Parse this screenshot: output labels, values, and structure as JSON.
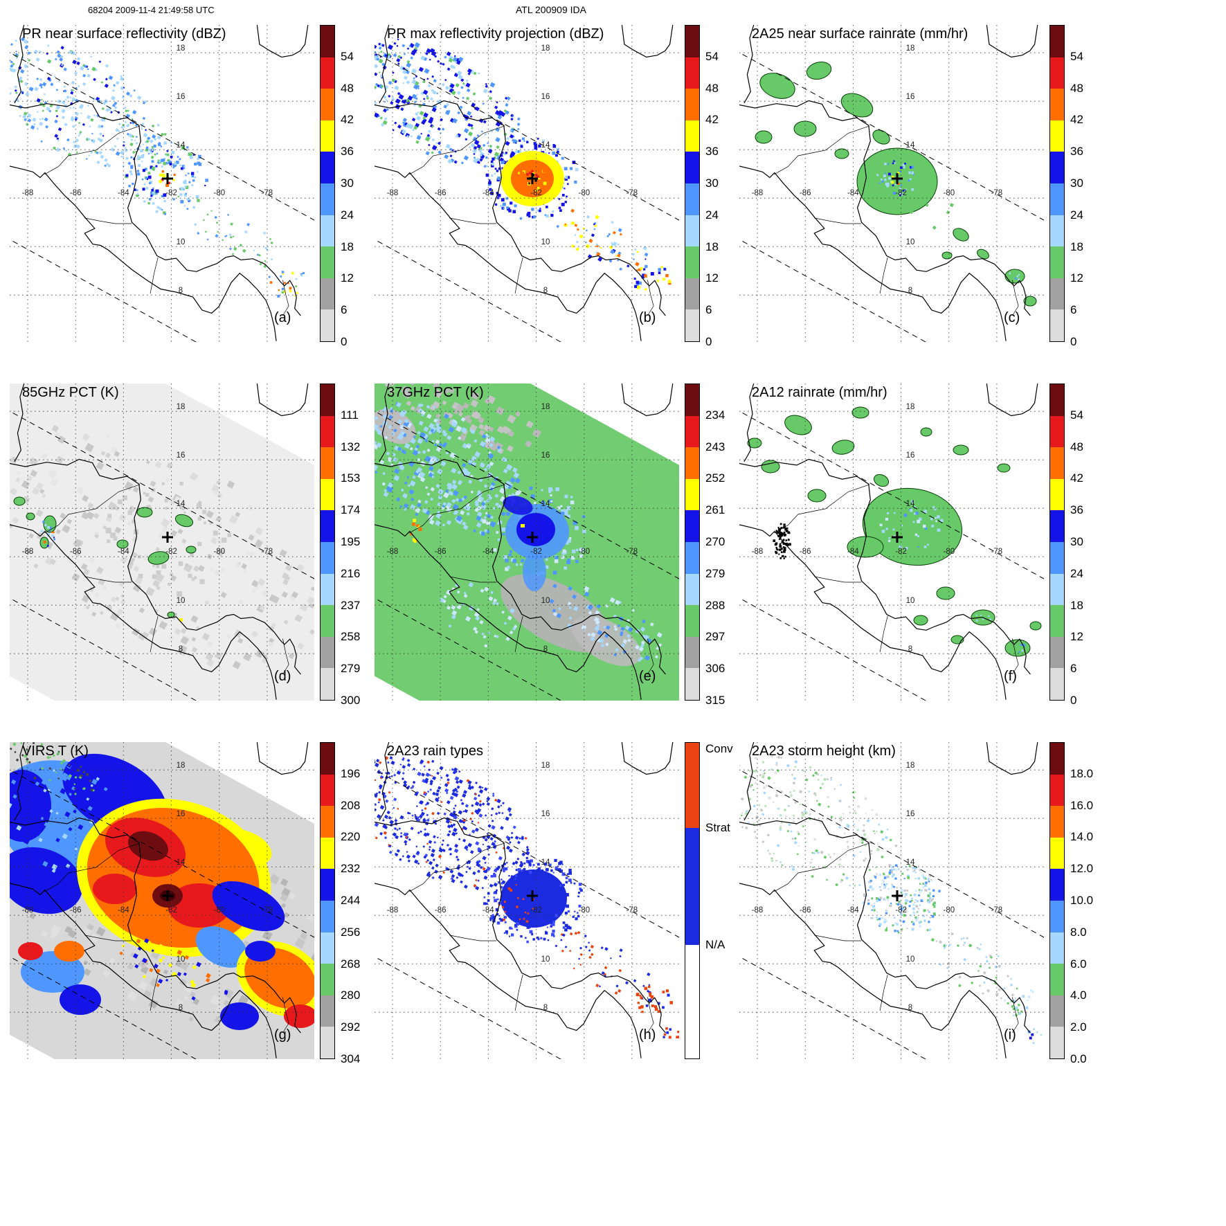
{
  "header": {
    "left": "68204 2009-11-4 21:49:58 UTC",
    "center": "ATL 200909 IDA"
  },
  "map": {
    "lon_labels": [
      "-88",
      "-86",
      "-84",
      "-82",
      "-80",
      "-78"
    ],
    "lat_labels": [
      "18",
      "16",
      "14",
      "10",
      "8"
    ],
    "storm_center_marker": "+",
    "storm_center": {
      "lon": -82.2,
      "lat": 12.8
    }
  },
  "palette": {
    "maroon": "#6d0d12",
    "red": "#e8191c",
    "orange": "#ff6e00",
    "yellow": "#ffff00",
    "blue": "#1414e8",
    "medblue": "#4f97ff",
    "lightblue": "#a6d7ff",
    "green": "#68c968",
    "gray": "#a2a2a2",
    "lightgray": "#dcdcdc",
    "conv": "#e84311",
    "strat": "#1c2be0",
    "swath85_bg": "#ededed",
    "swath37_bg": "#72cc72",
    "virs_bg": "#d8d8d8"
  },
  "colorbars": {
    "rainbow": [
      "#6d0d12",
      "#e8191c",
      "#ff6e00",
      "#ffff00",
      "#1414e8",
      "#4f97ff",
      "#a6d7ff",
      "#68c968",
      "#a2a2a2",
      "#dcdcdc"
    ],
    "dbz": {
      "ticks": [
        "54",
        "48",
        "42",
        "36",
        "30",
        "24",
        "18",
        "12",
        "6",
        "0"
      ]
    },
    "pct85": {
      "ticks": [
        "111",
        "132",
        "153",
        "174",
        "195",
        "216",
        "237",
        "258",
        "279",
        "300"
      ]
    },
    "pct37": {
      "ticks": [
        "234",
        "243",
        "252",
        "261",
        "270",
        "279",
        "288",
        "297",
        "306",
        "315"
      ]
    },
    "virs": {
      "ticks": [
        "196",
        "208",
        "220",
        "232",
        "244",
        "256",
        "268",
        "280",
        "292",
        "304"
      ]
    },
    "height": {
      "ticks": [
        "18.0",
        "16.0",
        "14.0",
        "12.0",
        "10.0",
        "8.0",
        "6.0",
        "4.0",
        "2.0",
        "0.0"
      ]
    },
    "raintype": {
      "labels": [
        "Conv",
        "Strat",
        "N/A"
      ],
      "colors": [
        "#e84311",
        "#1c2be0",
        "#ffffff"
      ],
      "fracs": [
        0.27,
        0.37,
        0.36
      ]
    }
  },
  "panels": [
    {
      "id": "a",
      "title": "PR near surface reflectivity (dBZ)",
      "letter": "(a)",
      "colorbar": "dbz"
    },
    {
      "id": "b",
      "title": "PR max reflectivity projection (dBZ)",
      "letter": "(b)",
      "colorbar": "dbz"
    },
    {
      "id": "c",
      "title": "2A25 near surface rainrate (mm/hr)",
      "letter": "(c)",
      "colorbar": "dbz"
    },
    {
      "id": "d",
      "title": "85GHz PCT (K)",
      "letter": "(d)",
      "colorbar": "pct85"
    },
    {
      "id": "e",
      "title": "37GHz PCT (K)",
      "letter": "(e)",
      "colorbar": "pct37"
    },
    {
      "id": "f",
      "title": "2A12 rainrate (mm/hr)",
      "letter": "(f)",
      "colorbar": "dbz"
    },
    {
      "id": "g",
      "title": "VIRS T (K)",
      "letter": "(g)",
      "colorbar": "virs"
    },
    {
      "id": "h",
      "title": "2A23 rain types",
      "letter": "(h)",
      "colorbar": "raintype"
    },
    {
      "id": "i",
      "title": "2A23 storm height (km)",
      "letter": "(i)",
      "colorbar": "height"
    }
  ],
  "chart_data": [
    {
      "panel": "a",
      "type": "heatmap",
      "title": "PR near surface reflectivity (dBZ)",
      "units": "dBZ",
      "scale_ticks": [
        54,
        48,
        42,
        36,
        30,
        24,
        18,
        12,
        6,
        0
      ],
      "lon_range": [
        -88.75,
        -76.2
      ],
      "lat_range": [
        6.1,
        19.1
      ],
      "storm_center": {
        "lon": -82.2,
        "lat": 12.8
      }
    },
    {
      "panel": "b",
      "type": "heatmap",
      "title": "PR max reflectivity projection (dBZ)",
      "units": "dBZ",
      "scale_ticks": [
        54,
        48,
        42,
        36,
        30,
        24,
        18,
        12,
        6,
        0
      ]
    },
    {
      "panel": "c",
      "type": "heatmap",
      "title": "2A25 near surface rainrate (mm/hr)",
      "units": "mm/hr",
      "scale_ticks": [
        54,
        48,
        42,
        36,
        30,
        24,
        18,
        12,
        6,
        0
      ]
    },
    {
      "panel": "d",
      "type": "heatmap",
      "title": "85GHz PCT (K)",
      "units": "K",
      "scale_ticks": [
        111,
        132,
        153,
        174,
        195,
        216,
        237,
        258,
        279,
        300
      ]
    },
    {
      "panel": "e",
      "type": "heatmap",
      "title": "37GHz PCT (K)",
      "units": "K",
      "scale_ticks": [
        234,
        243,
        252,
        261,
        270,
        279,
        288,
        297,
        306,
        315
      ]
    },
    {
      "panel": "f",
      "type": "heatmap",
      "title": "2A12 rainrate (mm/hr)",
      "units": "mm/hr",
      "scale_ticks": [
        54,
        48,
        42,
        36,
        30,
        24,
        18,
        12,
        6,
        0
      ]
    },
    {
      "panel": "g",
      "type": "heatmap",
      "title": "VIRS T (K)",
      "units": "K",
      "scale_ticks": [
        196,
        208,
        220,
        232,
        244,
        256,
        268,
        280,
        292,
        304
      ]
    },
    {
      "panel": "h",
      "type": "heatmap",
      "title": "2A23 rain types",
      "categories": [
        "Conv",
        "Strat",
        "N/A"
      ]
    },
    {
      "panel": "i",
      "type": "heatmap",
      "title": "2A23 storm height (km)",
      "units": "km",
      "scale_ticks": [
        18.0,
        16.0,
        14.0,
        12.0,
        10.0,
        8.0,
        6.0,
        4.0,
        2.0,
        0.0
      ]
    }
  ]
}
